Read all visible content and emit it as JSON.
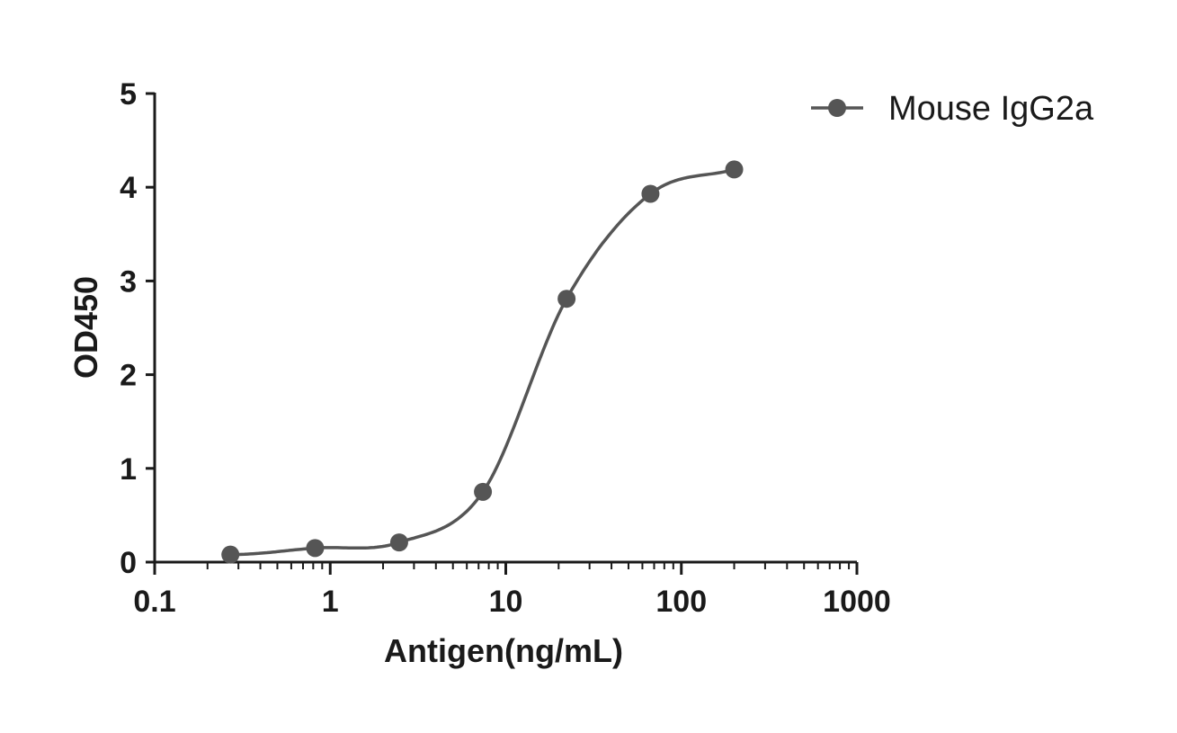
{
  "chart_data": {
    "type": "scatter",
    "xlabel": "Antigen(ng/mL)",
    "ylabel": "OD450",
    "xscale": "log",
    "xlim": [
      0.1,
      1000
    ],
    "ylim": [
      0,
      5
    ],
    "x_ticks": [
      "0.1",
      "1",
      "10",
      "100",
      "1000"
    ],
    "y_ticks": [
      "0",
      "1",
      "2",
      "3",
      "4",
      "5"
    ],
    "grid": false,
    "legend_position": "top-right",
    "series": [
      {
        "name": "Mouse IgG2a",
        "color": "#555555",
        "marker": "circle",
        "fit": "4-parameter logistic",
        "x": [
          0.27,
          0.82,
          2.47,
          7.41,
          22.2,
          66.7,
          200
        ],
        "y": [
          0.08,
          0.15,
          0.21,
          0.75,
          2.81,
          3.93,
          4.19
        ]
      }
    ]
  }
}
